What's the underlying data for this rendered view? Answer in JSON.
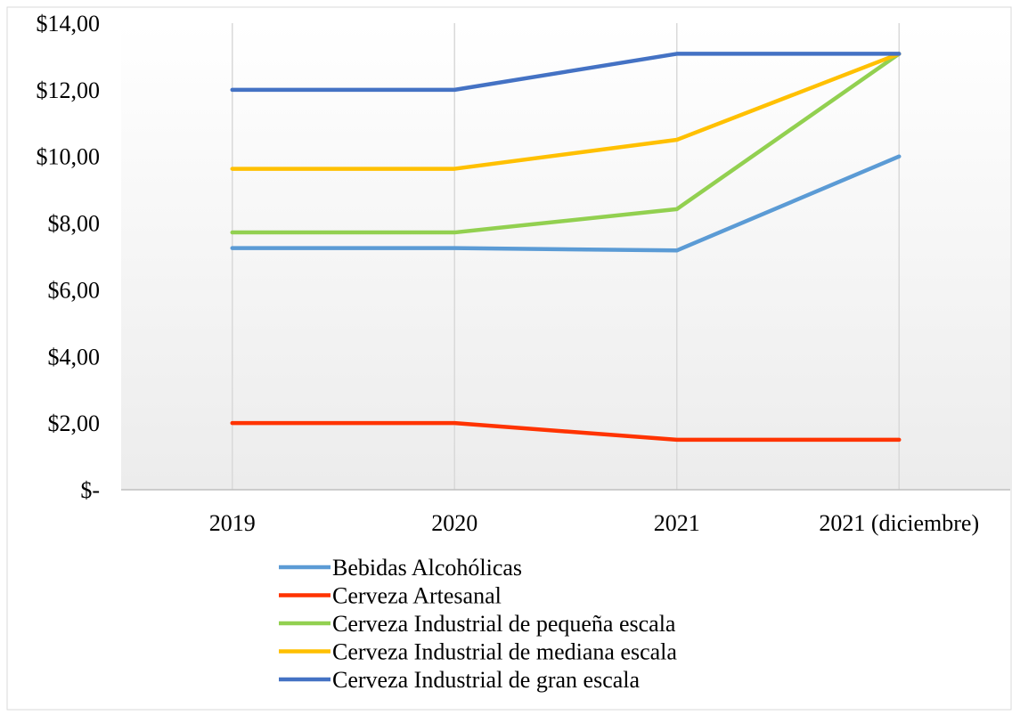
{
  "chart_data": {
    "type": "line",
    "title": "",
    "xlabel": "",
    "ylabel": "",
    "categories": [
      "2019",
      "2020",
      "2021",
      "2021 (diciembre)"
    ],
    "y_tick_labels": [
      "$-",
      "$2,00",
      "$4,00",
      "$6,00",
      "$8,00",
      "$10,00",
      "$12,00",
      "$14,00"
    ],
    "ylim": [
      0,
      14
    ],
    "grid": "vertical",
    "legend_position": "bottom-left",
    "series": [
      {
        "name": "Bebidas Alcohólicas",
        "color": "#5B9BD5",
        "values": [
          7.25,
          7.25,
          7.18,
          10.0
        ]
      },
      {
        "name": "Cerveza Artesanal",
        "color": "#FF3300",
        "values": [
          2.0,
          2.0,
          1.5,
          1.5
        ]
      },
      {
        "name": "Cerveza Industrial de pequeña escala",
        "color": "#92D050",
        "values": [
          7.72,
          7.72,
          8.42,
          13.08
        ]
      },
      {
        "name": "Cerveza Industrial de mediana escala",
        "color": "#FFC000",
        "values": [
          9.63,
          9.63,
          10.5,
          13.08
        ]
      },
      {
        "name": "Cerveza Industrial de gran escala",
        "color": "#4472C4",
        "values": [
          12.0,
          12.0,
          13.08,
          13.08
        ]
      }
    ]
  }
}
